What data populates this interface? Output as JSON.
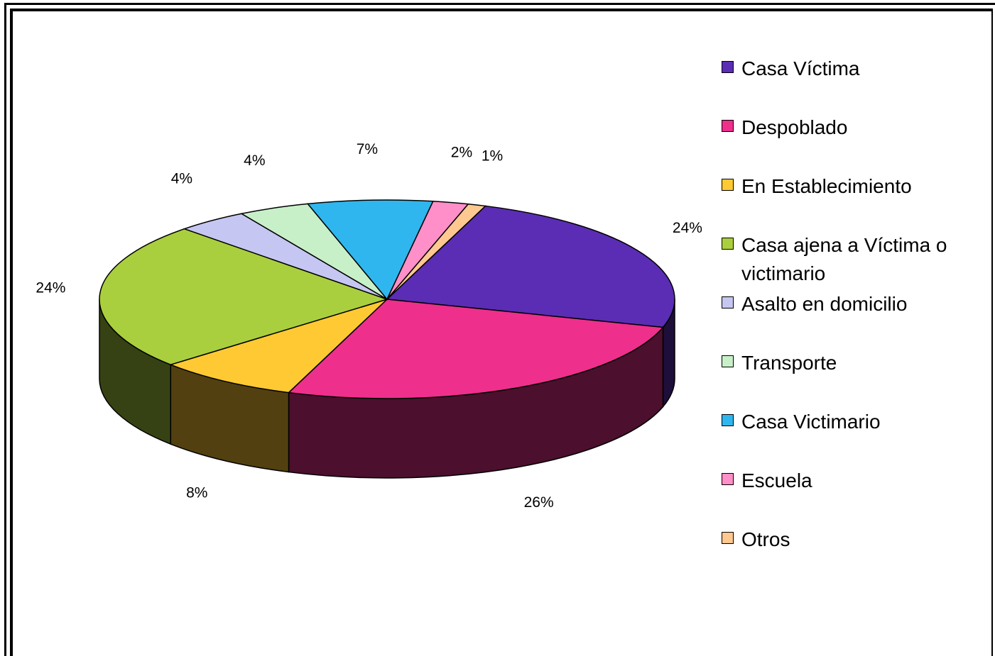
{
  "chart_data": {
    "type": "pie",
    "categories": [
      "Casa Víctima",
      "Despoblado",
      "En Establecimiento",
      "Casa ajena a Víctima o victimario",
      "Asalto en domicilio",
      "Transporte",
      "Casa Victimario",
      "Escuela",
      "Otros"
    ],
    "values": [
      24,
      26,
      8,
      24,
      4,
      4,
      7,
      2,
      1
    ],
    "value_labels": [
      "24%",
      "26%",
      "8%",
      "24%",
      "4%",
      "4%",
      "7%",
      "2%",
      "1%"
    ],
    "colors": [
      "#5a2db4",
      "#ee2f8c",
      "#ffc933",
      "#a9cf3e",
      "#c6c6f2",
      "#c8f0c8",
      "#2fb6ee",
      "#ff8fc8",
      "#ffc890"
    ],
    "legend": "right"
  }
}
